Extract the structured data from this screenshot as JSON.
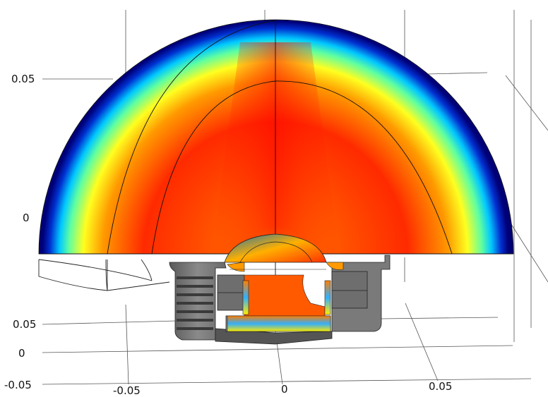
{
  "axes": {
    "z_ticks": [
      "0.05",
      "0"
    ],
    "y_ticks": [
      "0.05",
      "0",
      "-0.05"
    ],
    "x_ticks": [
      "-0.05",
      "0",
      "0.05"
    ]
  },
  "colormap": [
    "#00007f",
    "#0050ff",
    "#00d0ff",
    "#80ff80",
    "#ffff00",
    "#ff9000",
    "#ff2000",
    "#c00000"
  ]
}
